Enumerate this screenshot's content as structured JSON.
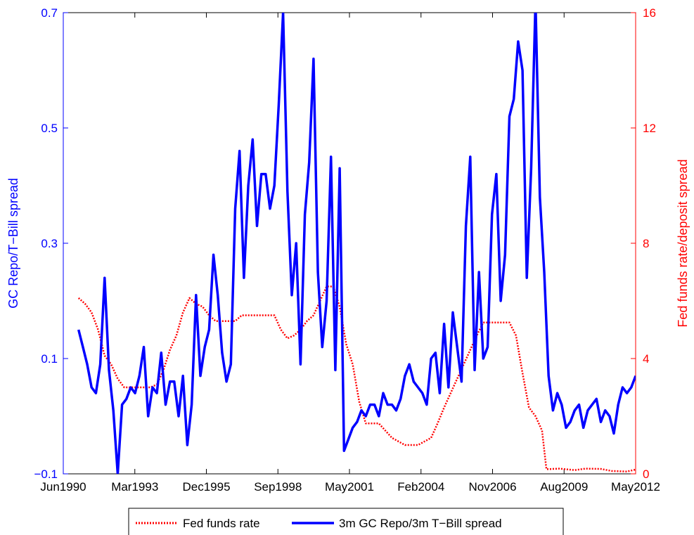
{
  "chart_data": {
    "type": "line",
    "x_tick_labels": [
      "Jun1990",
      "Mar1993",
      "Dec1995",
      "Sep1998",
      "May2001",
      "Feb2004",
      "Nov2006",
      "Aug2009",
      "May2012"
    ],
    "left_axis": {
      "label": "GC Repo/T−Bill spread",
      "ylim": [
        -0.1,
        0.7
      ],
      "tick_labels": [
        "−0.1",
        "0.1",
        "0.3",
        "0.5",
        "0.7"
      ],
      "color": "#0000ff"
    },
    "right_axis": {
      "label": "Fed funds rate/deposit spread",
      "ylim": [
        0,
        16
      ],
      "tick_labels": [
        "0",
        "4",
        "8",
        "12",
        "16"
      ],
      "color": "#ff0000"
    },
    "grid": false,
    "legend_position": "bottom-outside",
    "series": [
      {
        "name": "Fed funds rate",
        "axis": "right",
        "style": "dotted",
        "color": "#ff0000",
        "x": [
          "1991-01",
          "1991-04",
          "1991-07",
          "1991-10",
          "1992-01",
          "1992-04",
          "1992-07",
          "1992-10",
          "1993-01",
          "1993-04",
          "1993-07",
          "1993-10",
          "1994-01",
          "1994-04",
          "1994-07",
          "1994-10",
          "1995-01",
          "1995-04",
          "1995-07",
          "1995-10",
          "1996-01",
          "1996-04",
          "1996-07",
          "1996-10",
          "1997-01",
          "1997-04",
          "1997-07",
          "1997-10",
          "1998-01",
          "1998-04",
          "1998-07",
          "1998-10",
          "1999-01",
          "1999-04",
          "1999-07",
          "1999-10",
          "2000-01",
          "2000-04",
          "2000-07",
          "2000-10",
          "2001-01",
          "2001-04",
          "2001-07",
          "2001-10",
          "2002-01",
          "2002-07",
          "2003-01",
          "2003-07",
          "2004-01",
          "2004-07",
          "2004-10",
          "2005-01",
          "2005-04",
          "2005-07",
          "2005-10",
          "2006-01",
          "2006-04",
          "2006-07",
          "2007-01",
          "2007-07",
          "2007-10",
          "2008-01",
          "2008-04",
          "2008-07",
          "2008-10",
          "2008-12",
          "2009-06",
          "2010-01",
          "2010-06",
          "2011-01",
          "2011-06",
          "2012-01",
          "2012-05"
        ],
        "values": [
          6.1,
          5.9,
          5.6,
          5.0,
          4.1,
          3.8,
          3.3,
          3.0,
          3.0,
          3.0,
          3.0,
          3.0,
          3.1,
          3.6,
          4.3,
          4.8,
          5.6,
          6.1,
          5.9,
          5.8,
          5.5,
          5.3,
          5.3,
          5.3,
          5.3,
          5.5,
          5.5,
          5.5,
          5.5,
          5.5,
          5.5,
          5.0,
          4.7,
          4.8,
          5.0,
          5.3,
          5.5,
          6.0,
          6.5,
          6.5,
          5.8,
          4.5,
          3.8,
          2.5,
          1.75,
          1.75,
          1.25,
          1.0,
          1.0,
          1.25,
          1.75,
          2.3,
          2.8,
          3.3,
          3.8,
          4.3,
          4.8,
          5.25,
          5.25,
          5.25,
          4.8,
          3.5,
          2.3,
          2.0,
          1.5,
          0.16,
          0.18,
          0.13,
          0.18,
          0.17,
          0.1,
          0.08,
          0.15
        ]
      },
      {
        "name": "3m GC Repo/3m T−Bill spread",
        "axis": "left",
        "style": "solid",
        "color": "#0000ff",
        "x": [
          "1991-01",
          "1991-03",
          "1991-05",
          "1991-07",
          "1991-09",
          "1991-11",
          "1992-01",
          "1992-03",
          "1992-05",
          "1992-07",
          "1992-09",
          "1992-11",
          "1993-01",
          "1993-03",
          "1993-05",
          "1993-07",
          "1993-09",
          "1993-11",
          "1994-01",
          "1994-03",
          "1994-05",
          "1994-07",
          "1994-09",
          "1994-11",
          "1995-01",
          "1995-03",
          "1995-05",
          "1995-07",
          "1995-09",
          "1995-11",
          "1996-01",
          "1996-03",
          "1996-05",
          "1996-07",
          "1996-09",
          "1996-11",
          "1997-01",
          "1997-03",
          "1997-05",
          "1997-07",
          "1997-09",
          "1997-11",
          "1998-01",
          "1998-03",
          "1998-05",
          "1998-07",
          "1998-09",
          "1998-11",
          "1999-01",
          "1999-03",
          "1999-05",
          "1999-07",
          "1999-09",
          "1999-11",
          "2000-01",
          "2000-03",
          "2000-05",
          "2000-07",
          "2000-09",
          "2000-11",
          "2001-01",
          "2001-03",
          "2001-05",
          "2001-07",
          "2001-09",
          "2001-11",
          "2002-01",
          "2002-03",
          "2002-05",
          "2002-07",
          "2002-09",
          "2002-11",
          "2003-01",
          "2003-03",
          "2003-05",
          "2003-07",
          "2003-09",
          "2003-11",
          "2004-01",
          "2004-03",
          "2004-05",
          "2004-07",
          "2004-09",
          "2004-11",
          "2005-01",
          "2005-03",
          "2005-05",
          "2005-07",
          "2005-09",
          "2005-11",
          "2006-01",
          "2006-03",
          "2006-05",
          "2006-07",
          "2006-09",
          "2006-11",
          "2007-01",
          "2007-03",
          "2007-05",
          "2007-07",
          "2007-09",
          "2007-11",
          "2008-01",
          "2008-03",
          "2008-05",
          "2008-07",
          "2008-09",
          "2008-11",
          "2009-01",
          "2009-03",
          "2009-05",
          "2009-07",
          "2009-09",
          "2009-11",
          "2010-01",
          "2010-03",
          "2010-05",
          "2010-07",
          "2010-09",
          "2010-11",
          "2011-01",
          "2011-03",
          "2011-05",
          "2011-07",
          "2011-09",
          "2011-11",
          "2012-01",
          "2012-03",
          "2012-05"
        ],
        "values": [
          0.15,
          0.12,
          0.09,
          0.05,
          0.04,
          0.09,
          0.24,
          0.08,
          0.01,
          -0.1,
          0.02,
          0.03,
          0.05,
          0.04,
          0.07,
          0.12,
          0.0,
          0.05,
          0.04,
          0.11,
          0.02,
          0.06,
          0.06,
          0.0,
          0.07,
          -0.05,
          0.02,
          0.21,
          0.07,
          0.12,
          0.15,
          0.28,
          0.21,
          0.11,
          0.06,
          0.09,
          0.36,
          0.46,
          0.24,
          0.4,
          0.48,
          0.33,
          0.42,
          0.42,
          0.36,
          0.4,
          0.54,
          0.7,
          0.39,
          0.21,
          0.3,
          0.09,
          0.35,
          0.44,
          0.62,
          0.25,
          0.12,
          0.2,
          0.45,
          0.08,
          0.43,
          -0.06,
          -0.04,
          -0.02,
          -0.01,
          0.01,
          0.0,
          0.02,
          0.02,
          0.0,
          0.04,
          0.02,
          0.02,
          0.01,
          0.03,
          0.07,
          0.09,
          0.06,
          0.05,
          0.04,
          0.02,
          0.1,
          0.11,
          0.04,
          0.16,
          0.05,
          0.18,
          0.12,
          0.06,
          0.33,
          0.45,
          0.08,
          0.25,
          0.1,
          0.12,
          0.35,
          0.42,
          0.2,
          0.28,
          0.52,
          0.55,
          0.65,
          0.6,
          0.24,
          0.43,
          0.72,
          0.38,
          0.25,
          0.07,
          0.01,
          0.04,
          0.02,
          -0.02,
          -0.01,
          0.01,
          0.02,
          -0.02,
          0.01,
          0.02,
          0.03,
          -0.01,
          0.01,
          0.0,
          -0.03,
          0.02,
          0.05,
          0.04,
          0.05,
          0.07
        ]
      }
    ]
  }
}
